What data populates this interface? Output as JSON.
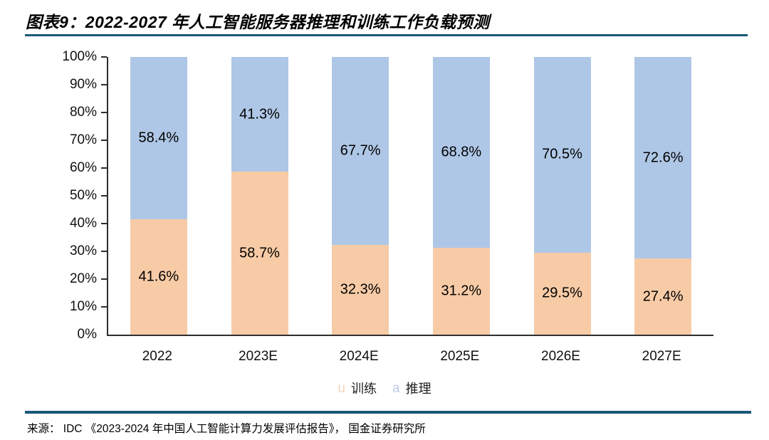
{
  "page": {
    "title": "图表9：2022-2027 年人工智能服务器推理和训练工作负载预测",
    "source": "来源： IDC 《2023-2024 年中国人工智能计算力发展评估报告》， 国金证券研究所"
  },
  "colors": {
    "training_bar": "#F7CBA6",
    "inference_bar": "#AFC7E6",
    "legend_training_marker": "#F3D5BE",
    "legend_inference_marker": "#BFCDEA",
    "rule": "#1A5878",
    "axis": "#2E2E2E"
  },
  "legend": {
    "items": [
      {
        "marker": "u",
        "label": "训练",
        "marker_color": "#F3D5BE"
      },
      {
        "marker": "a",
        "label": "推理",
        "marker_color": "#BFCDEA"
      }
    ]
  },
  "chart_data": {
    "type": "bar",
    "stacked": true,
    "title": "图表9：2022-2027 年人工智能服务器推理和训练工作负载预测",
    "categories": [
      "2022",
      "2023E",
      "2024E",
      "2025E",
      "2026E",
      "2027E"
    ],
    "series": [
      {
        "name": "训练",
        "color": "#F7CBA6",
        "position": "bottom",
        "values": [
          41.6,
          58.7,
          32.3,
          31.2,
          29.5,
          27.4
        ]
      },
      {
        "name": "推理",
        "color": "#AFC7E6",
        "position": "top",
        "values": [
          58.4,
          41.3,
          67.7,
          68.8,
          70.5,
          72.6
        ]
      }
    ],
    "value_suffix": "%",
    "xlabel": "",
    "ylabel": "",
    "ylim": [
      0,
      100
    ],
    "yticks": [
      "0%",
      "10%",
      "20%",
      "30%",
      "40%",
      "50%",
      "60%",
      "70%",
      "80%",
      "90%",
      "100%"
    ],
    "grid": false,
    "legend_position": "bottom",
    "data_labels": "inside-center"
  }
}
